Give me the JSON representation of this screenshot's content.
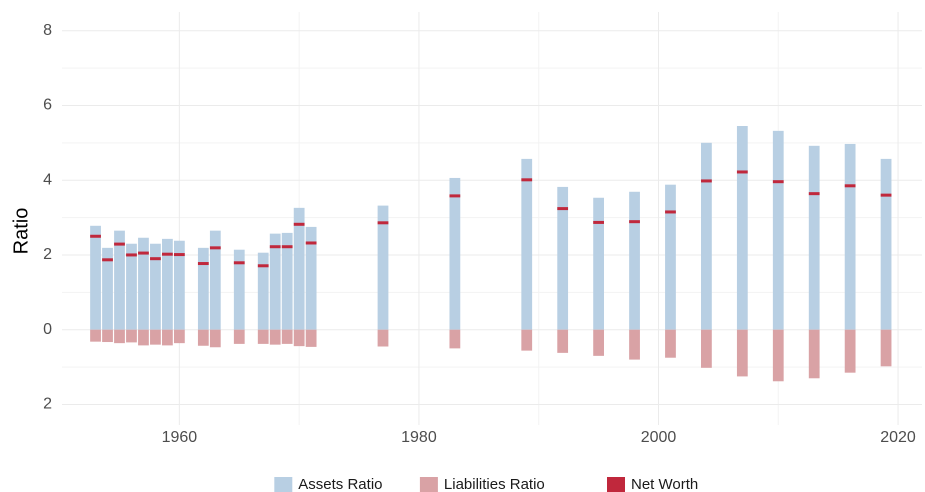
{
  "chart_data": {
    "type": "bar",
    "ylabel": "Ratio",
    "x": [
      1953,
      1954,
      1955,
      1956,
      1957,
      1958,
      1959,
      1960,
      1962,
      1963,
      1965,
      1967,
      1968,
      1969,
      1970,
      1971,
      1977,
      1983,
      1989,
      1992,
      1995,
      1998,
      2001,
      2004,
      2007,
      2010,
      2013,
      2016,
      2019
    ],
    "series": [
      {
        "name": "Assets Ratio",
        "color": "#b8cfe3",
        "style": "bar",
        "values": [
          2.78,
          2.19,
          2.65,
          2.3,
          2.46,
          2.3,
          2.43,
          2.38,
          2.19,
          2.65,
          2.14,
          2.06,
          2.57,
          2.59,
          3.26,
          2.75,
          3.32,
          4.06,
          4.57,
          3.82,
          3.53,
          3.69,
          3.88,
          5.0,
          5.45,
          5.32,
          4.92,
          4.97,
          4.57
        ]
      },
      {
        "name": "Liabilities Ratio",
        "color": "#d9a2a5",
        "style": "bar",
        "values": [
          -0.32,
          -0.33,
          -0.36,
          -0.34,
          -0.42,
          -0.4,
          -0.42,
          -0.36,
          -0.43,
          -0.47,
          -0.38,
          -0.38,
          -0.4,
          -0.38,
          -0.44,
          -0.46,
          -0.45,
          -0.5,
          -0.56,
          -0.62,
          -0.7,
          -0.8,
          -0.75,
          -1.02,
          -1.25,
          -1.38,
          -1.3,
          -1.15,
          -0.98
        ]
      },
      {
        "name": "Net Worth",
        "color": "#c0283c",
        "style": "tick",
        "values": [
          2.5,
          1.87,
          2.29,
          2.0,
          2.05,
          1.9,
          2.02,
          2.01,
          1.77,
          2.19,
          1.79,
          1.71,
          2.22,
          2.22,
          2.82,
          2.32,
          2.86,
          3.58,
          4.01,
          3.24,
          2.87,
          2.89,
          3.15,
          3.98,
          4.22,
          3.96,
          3.64,
          3.85,
          3.6
        ]
      }
    ],
    "xlim": [
      1950.2,
      2022
    ],
    "xticks": [
      1960,
      1980,
      2000,
      2020
    ],
    "ylim": [
      -2.55,
      8.5
    ],
    "yticks": [
      {
        "value": -2,
        "label": "2"
      },
      0,
      2,
      4,
      6,
      8
    ],
    "grid": true,
    "legend": "bottom"
  }
}
